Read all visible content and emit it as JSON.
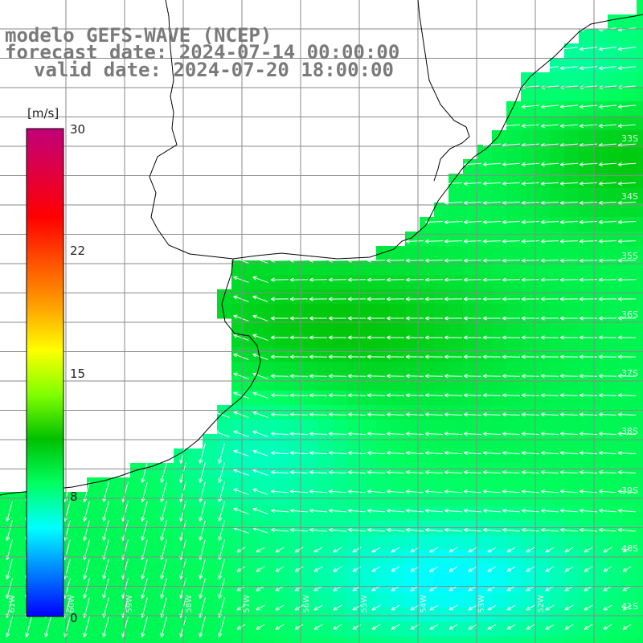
{
  "title": {
    "line1": "modelo GEFS-WAVE (NCEP)",
    "line2": "forecast date: 2024-07-14 00:00:00",
    "line3": "valid date: 2024-07-20 18:00:00"
  },
  "colorbar": {
    "unit": "[m/s]",
    "ticks": [
      "30",
      "22",
      "15",
      "8",
      "0"
    ],
    "tick_values": [
      30,
      22,
      15,
      8,
      0
    ],
    "range": [
      0,
      30
    ],
    "colors": [
      "#0000ff",
      "#0080ff",
      "#00ffff",
      "#00ff60",
      "#00c000",
      "#80ff00",
      "#ffff00",
      "#ffa000",
      "#ff5000",
      "#ff0000",
      "#e00040",
      "#c0007a"
    ]
  },
  "lat_labels": [
    "33S",
    "34S",
    "35S",
    "36S",
    "37S",
    "38S",
    "39S",
    "40S",
    "41S"
  ],
  "lon_labels": [
    "61W",
    "60W",
    "59W",
    "58W",
    "57W",
    "56W",
    "55W",
    "54W",
    "53W",
    "52W"
  ],
  "colors": {
    "land": "#ffffff",
    "coast": "#000000",
    "grid": "#8a8a8a",
    "title": "#7a7a7a",
    "arrow": "#ffffff"
  }
}
